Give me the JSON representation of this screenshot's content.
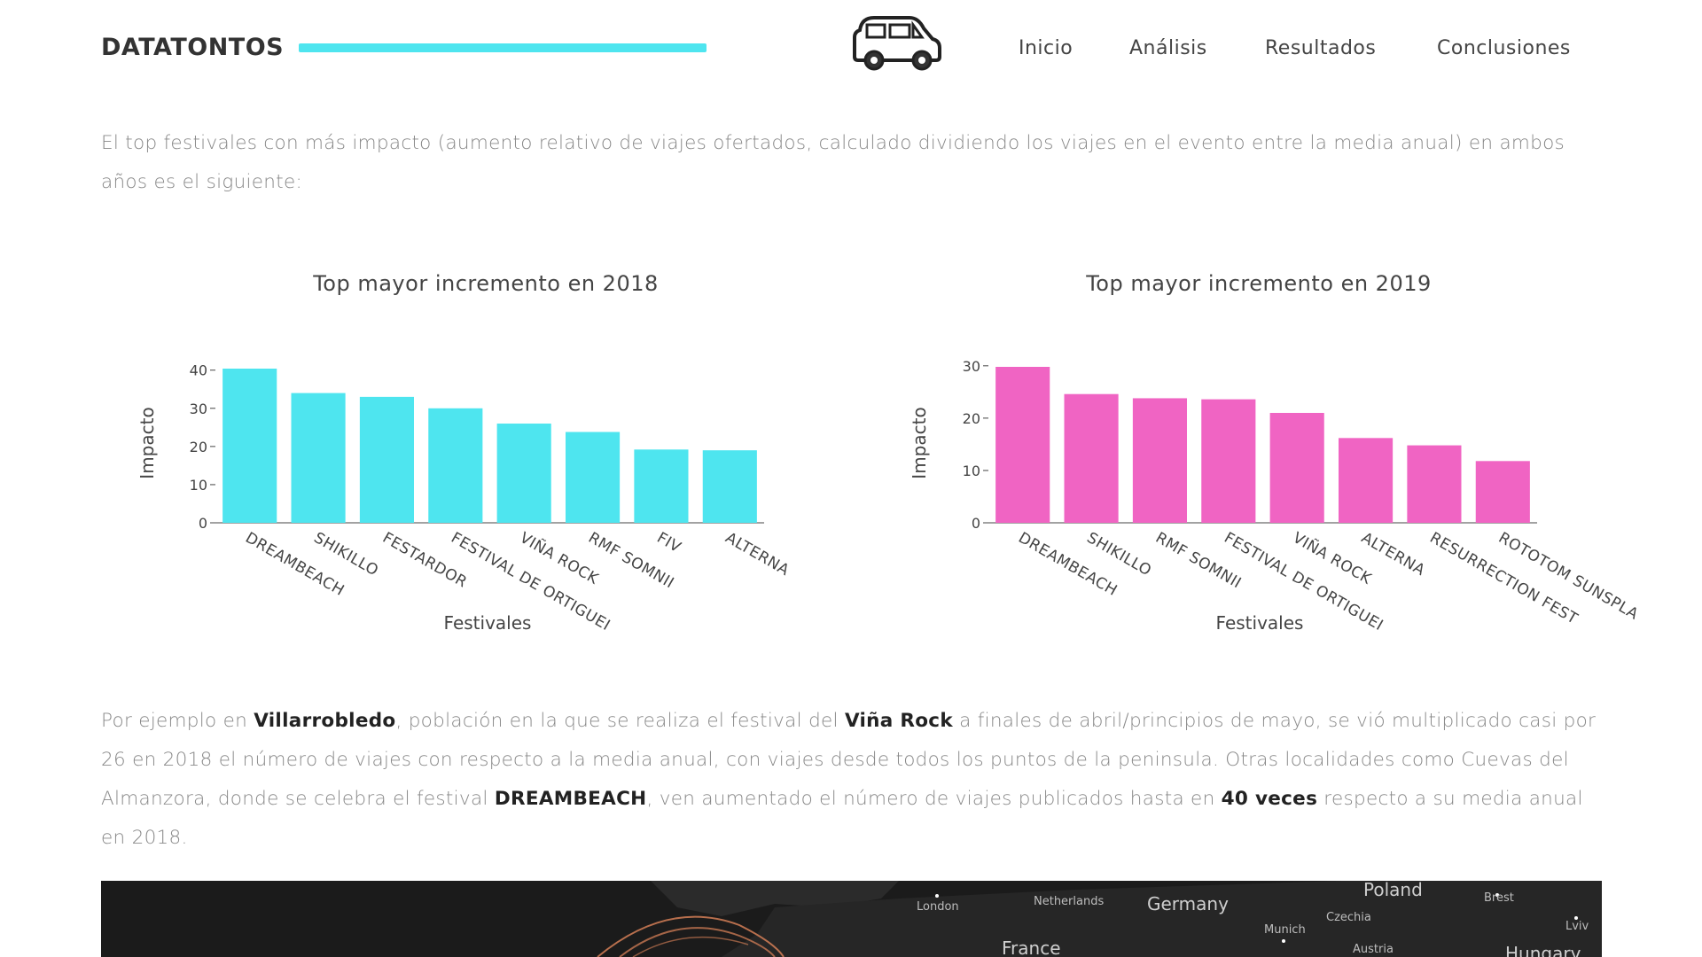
{
  "header": {
    "brand": "DATATONTOS",
    "progress": 0.73,
    "car_icon": "car-icon",
    "nav": [
      "Inicio",
      "Análisis",
      "Resultados",
      "Conclusiones"
    ]
  },
  "intro": {
    "text": "El top festivales con más impacto (aumento relativo de viajes ofertados, calculado dividiendo los viajes en el evento entre la media anual) en ambos años es el siguiente:"
  },
  "chart_data": [
    {
      "type": "bar",
      "title": "Top mayor incremento en 2018",
      "xlabel": "Festivales",
      "ylabel": "Impacto",
      "categories": [
        "DREAMBEACH",
        "SHIKILLO",
        "FESTARDOR",
        "FESTIVAL DE ORTIGUEIRA",
        "VIÑA ROCK",
        "RMF SOMNII",
        "FIV",
        "ALTERNA"
      ],
      "tick_labels": [
        "DREAMBEACH",
        "SHIKILLO",
        "FESTARDOR",
        "FESTIVAL DE ORTIGUEI",
        "VIÑA ROCK",
        "RMF SOMNII",
        "FIV",
        "ALTERNA"
      ],
      "values": [
        40.4,
        34,
        33,
        30,
        26,
        23.8,
        19.2,
        19
      ],
      "yticks": [
        0,
        10,
        20,
        30,
        40
      ],
      "ylim": [
        0,
        40.4
      ],
      "color": "#4ee5ef"
    },
    {
      "type": "bar",
      "title": "Top mayor incremento en 2019",
      "xlabel": "Festivales",
      "ylabel": "Impacto",
      "categories": [
        "DREAMBEACH",
        "SHIKILLO",
        "RMF SOMNII",
        "FESTIVAL DE ORTIGUEIRA",
        "VIÑA ROCK",
        "ALTERNA",
        "RESURRECTION FEST",
        "ROTOTOM SUNSPLASH"
      ],
      "tick_labels": [
        "DREAMBEACH",
        "SHIKILLO",
        "RMF SOMNII",
        "FESTIVAL DE ORTIGUEI",
        "VIÑA ROCK",
        "ALTERNA",
        "RESURRECTION FEST",
        "ROTOTOM SUNSPLA"
      ],
      "values": [
        29.8,
        24.6,
        23.8,
        23.6,
        21,
        16.2,
        14.8,
        11.8
      ],
      "yticks": [
        0,
        10,
        20,
        30
      ],
      "ylim": [
        0,
        29.8
      ],
      "color": "#f064c3"
    }
  ],
  "body": {
    "p1": "Por ejemplo en ",
    "b1": "Villarrobledo",
    "p2": ", población en la que se realiza el festival del ",
    "b2": "Viña Rock",
    "p3": " a finales de abril/principios de mayo, se vió multiplicado casi por 26 en 2018 el número de viajes con respecto a la media anual, con viajes desde todos los puntos de la peninsula. Otras localidades como Cuevas del Almanzora, donde se celebra el festival ",
    "b3": "DREAMBEACH",
    "p4": ", ven aumentado el número de viajes publicados hasta en ",
    "b4": "40 veces",
    "p5": " respecto a su media anual en 2018."
  },
  "map": {
    "labels": [
      "London",
      "Netherlands",
      "Germany",
      "Poland",
      "Brest",
      "Lviv",
      "Munich",
      "Czechia",
      "France",
      "Austria",
      "Hungary"
    ]
  }
}
